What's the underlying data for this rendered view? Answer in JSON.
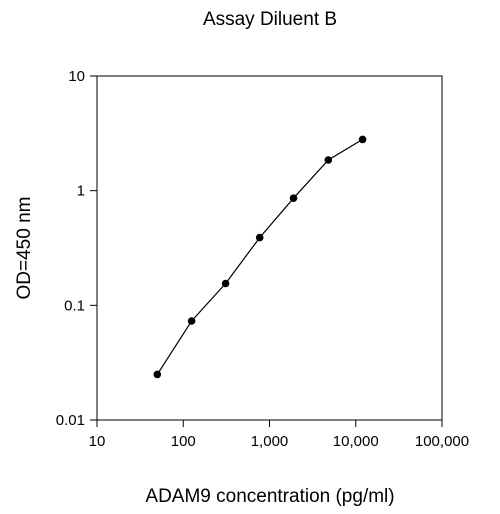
{
  "chart_data": {
    "type": "line",
    "title": "Assay Diluent B",
    "xlabel": "ADAM9 concentration (pg/ml)",
    "ylabel": "OD=450 nm",
    "x_scale": "log",
    "y_scale": "log",
    "xlim": [
      10,
      100000
    ],
    "ylim": [
      0.01,
      10
    ],
    "x_ticks": [
      {
        "value": 10,
        "label": "10"
      },
      {
        "value": 100,
        "label": "100"
      },
      {
        "value": 1000,
        "label": "1,000"
      },
      {
        "value": 10000,
        "label": "10,000"
      },
      {
        "value": 100000,
        "label": "100,000"
      }
    ],
    "y_ticks": [
      {
        "value": 0.01,
        "label": "0.01"
      },
      {
        "value": 0.1,
        "label": "0.1"
      },
      {
        "value": 1,
        "label": "1"
      },
      {
        "value": 10,
        "label": "10"
      }
    ],
    "grid": false,
    "series": [
      {
        "x": [
          50,
          125,
          310,
          770,
          1900,
          4800,
          12000
        ],
        "y": [
          0.025,
          0.073,
          0.155,
          0.39,
          0.86,
          1.85,
          2.8
        ]
      }
    ],
    "colors": {
      "line": "#000000",
      "marker": "#000000",
      "frame": "#000000"
    }
  }
}
